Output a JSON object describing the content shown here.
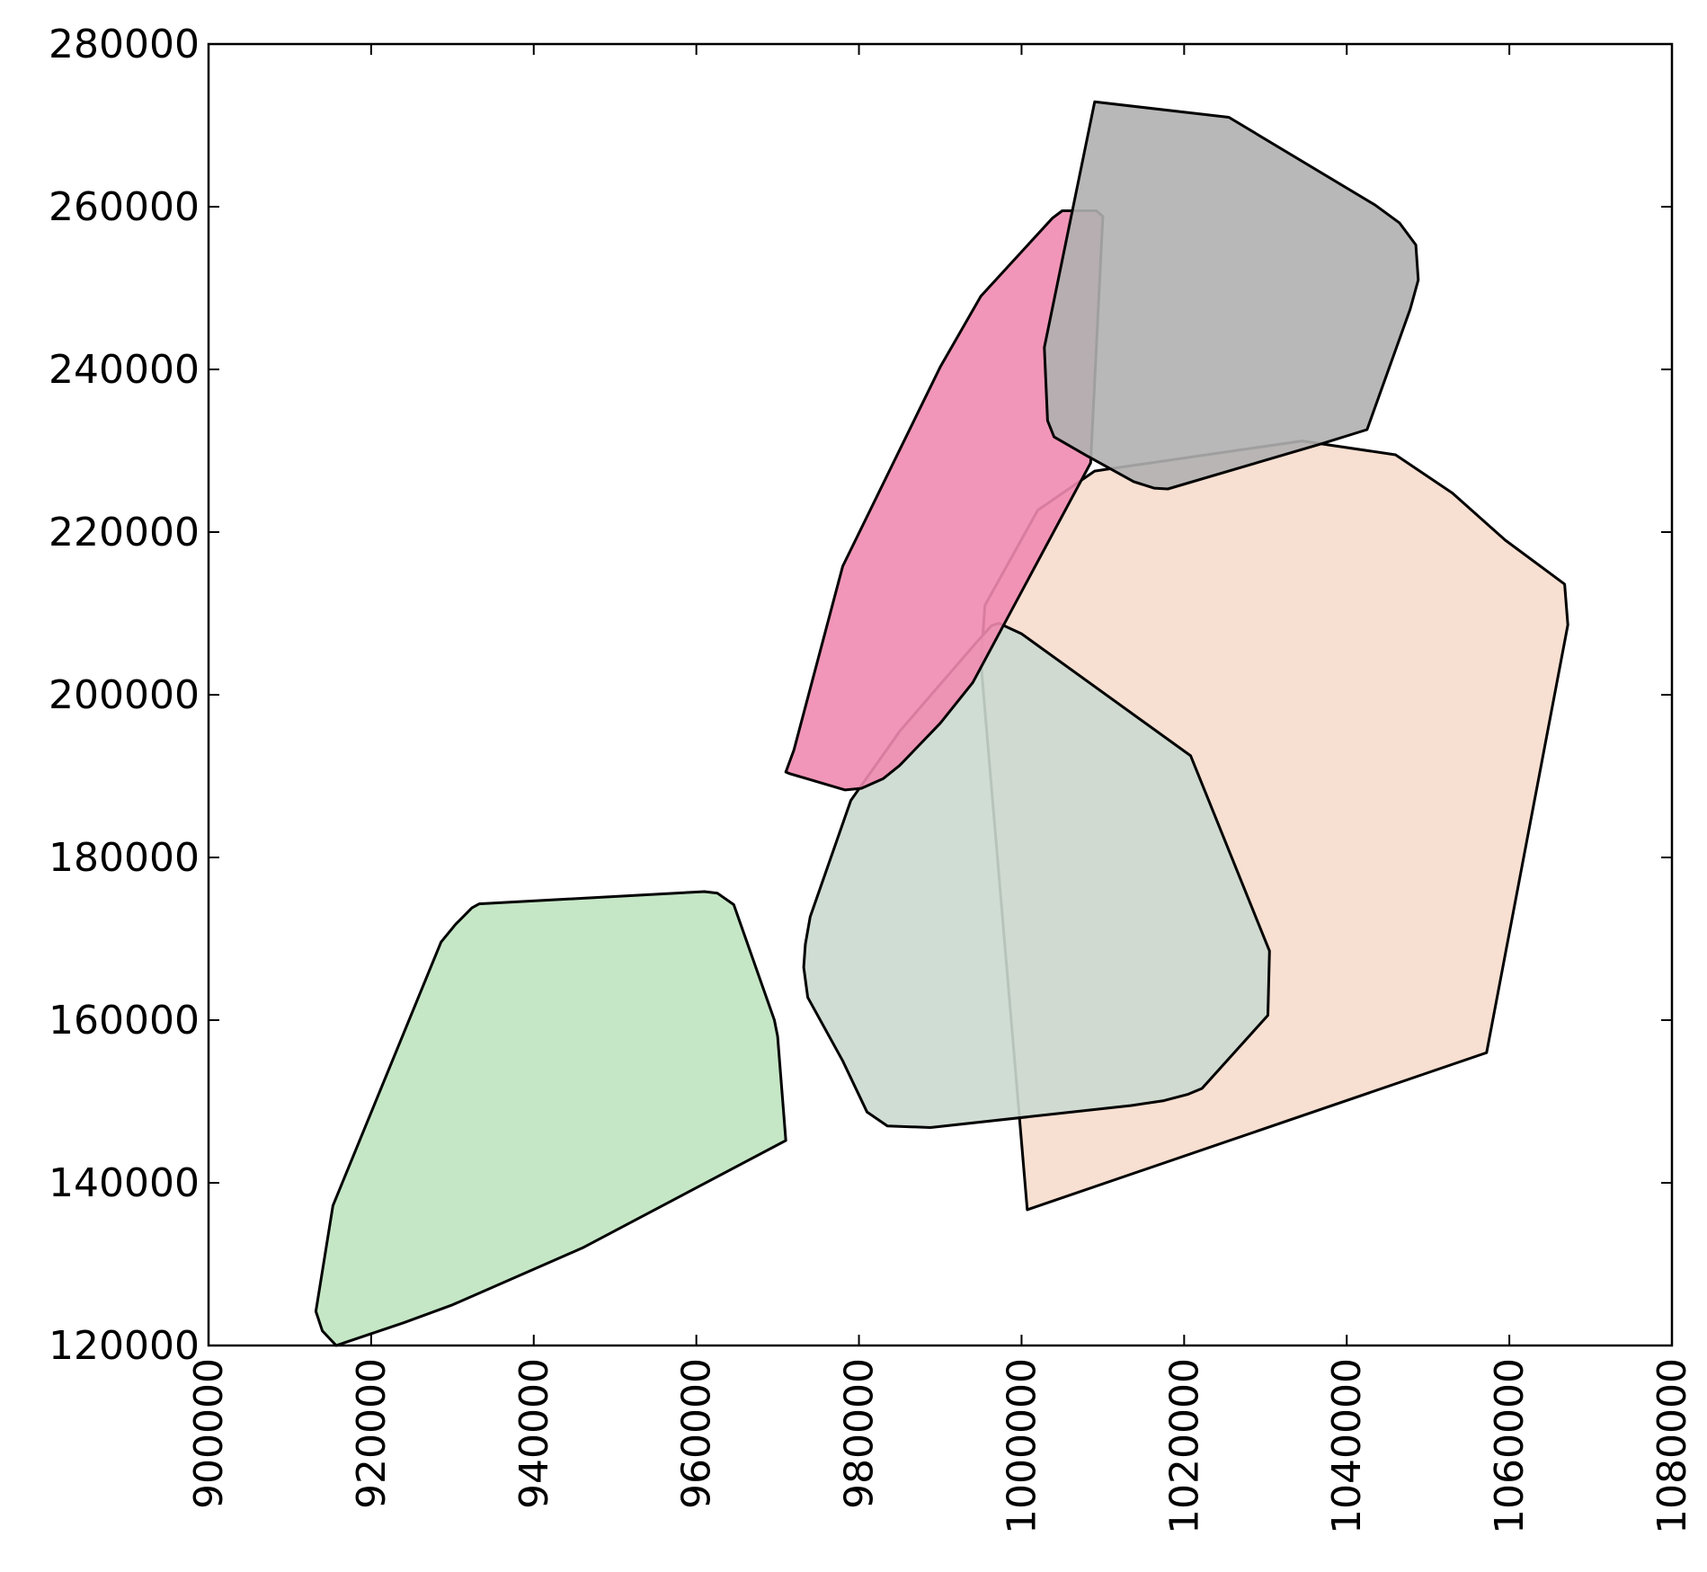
{
  "chart_data": {
    "type": "area",
    "title": "",
    "xlabel": "",
    "ylabel": "",
    "xlim": [
      900000,
      1080000
    ],
    "ylim": [
      120000,
      280000
    ],
    "grid": false,
    "xticks": [
      "900000",
      "920000",
      "940000",
      "960000",
      "980000",
      "1000000",
      "1020000",
      "1040000",
      "1060000",
      "1080000"
    ],
    "yticks": [
      "120000",
      "140000",
      "160000",
      "180000",
      "200000",
      "220000",
      "240000",
      "260000",
      "280000"
    ],
    "polygons": [
      {
        "color": "#bfe4c0",
        "points": [
          [
            915700,
            120000
          ],
          [
            914000,
            121800
          ],
          [
            913200,
            124200
          ],
          [
            915300,
            137200
          ],
          [
            928600,
            169600
          ],
          [
            930400,
            171800
          ],
          [
            932400,
            173800
          ],
          [
            933300,
            174300
          ],
          [
            961000,
            175800
          ],
          [
            962600,
            175600
          ],
          [
            964600,
            174200
          ],
          [
            969600,
            160000
          ],
          [
            970000,
            158000
          ],
          [
            971000,
            145200
          ],
          [
            946000,
            132000
          ],
          [
            930000,
            125000
          ],
          [
            924000,
            122800
          ],
          [
            915700,
            120000
          ]
        ]
      },
      {
        "color": "#f6dccc",
        "points": [
          [
            1000700,
            136700
          ],
          [
            995000,
            204000
          ],
          [
            995500,
            211000
          ],
          [
            1002000,
            222700
          ],
          [
            1009000,
            227500
          ],
          [
            1011000,
            227800
          ],
          [
            1034500,
            231200
          ],
          [
            1046000,
            229500
          ],
          [
            1053000,
            224800
          ],
          [
            1059500,
            219000
          ],
          [
            1066800,
            213600
          ],
          [
            1067200,
            208600
          ],
          [
            1057200,
            156000
          ],
          [
            1000700,
            136700
          ]
        ]
      },
      {
        "color": "#cbd9cf",
        "points": [
          [
            983500,
            147000
          ],
          [
            981000,
            148700
          ],
          [
            978000,
            155000
          ],
          [
            973700,
            162800
          ],
          [
            973200,
            166500
          ],
          [
            973400,
            169300
          ],
          [
            974000,
            172700
          ],
          [
            979000,
            187000
          ],
          [
            985000,
            195500
          ],
          [
            994500,
            206500
          ],
          [
            996300,
            208500
          ],
          [
            997200,
            208800
          ],
          [
            1000000,
            207500
          ],
          [
            1020800,
            192500
          ],
          [
            1030500,
            168500
          ],
          [
            1030300,
            160600
          ],
          [
            1022200,
            151600
          ],
          [
            1020500,
            150900
          ],
          [
            1017500,
            150100
          ],
          [
            1013500,
            149500
          ],
          [
            988800,
            146800
          ],
          [
            983500,
            147000
          ]
        ]
      },
      {
        "color": "#f08bb0",
        "points": [
          [
            971000,
            190500
          ],
          [
            972000,
            193200
          ],
          [
            978000,
            215800
          ],
          [
            990000,
            240300
          ],
          [
            995000,
            249000
          ],
          [
            1003800,
            258600
          ],
          [
            1005000,
            259500
          ],
          [
            1009200,
            259500
          ],
          [
            1010000,
            258800
          ],
          [
            1008500,
            228500
          ],
          [
            994000,
            201500
          ],
          [
            990000,
            196500
          ],
          [
            985000,
            191300
          ],
          [
            983000,
            189700
          ],
          [
            980300,
            188500
          ],
          [
            978300,
            188300
          ],
          [
            971500,
            190300
          ],
          [
            971000,
            190500
          ]
        ]
      },
      {
        "color": "#b0b0b0",
        "points": [
          [
            1009000,
            272900
          ],
          [
            1025500,
            271000
          ],
          [
            1043500,
            260200
          ],
          [
            1046500,
            258000
          ],
          [
            1048500,
            255300
          ],
          [
            1048800,
            251000
          ],
          [
            1047800,
            247400
          ],
          [
            1042500,
            232600
          ],
          [
            1037000,
            230900
          ],
          [
            1018000,
            225300
          ],
          [
            1016300,
            225400
          ],
          [
            1013800,
            226200
          ],
          [
            1008000,
            229400
          ],
          [
            1004000,
            231700
          ],
          [
            1003200,
            233700
          ],
          [
            1002800,
            242700
          ],
          [
            1009000,
            272900
          ]
        ]
      }
    ]
  }
}
